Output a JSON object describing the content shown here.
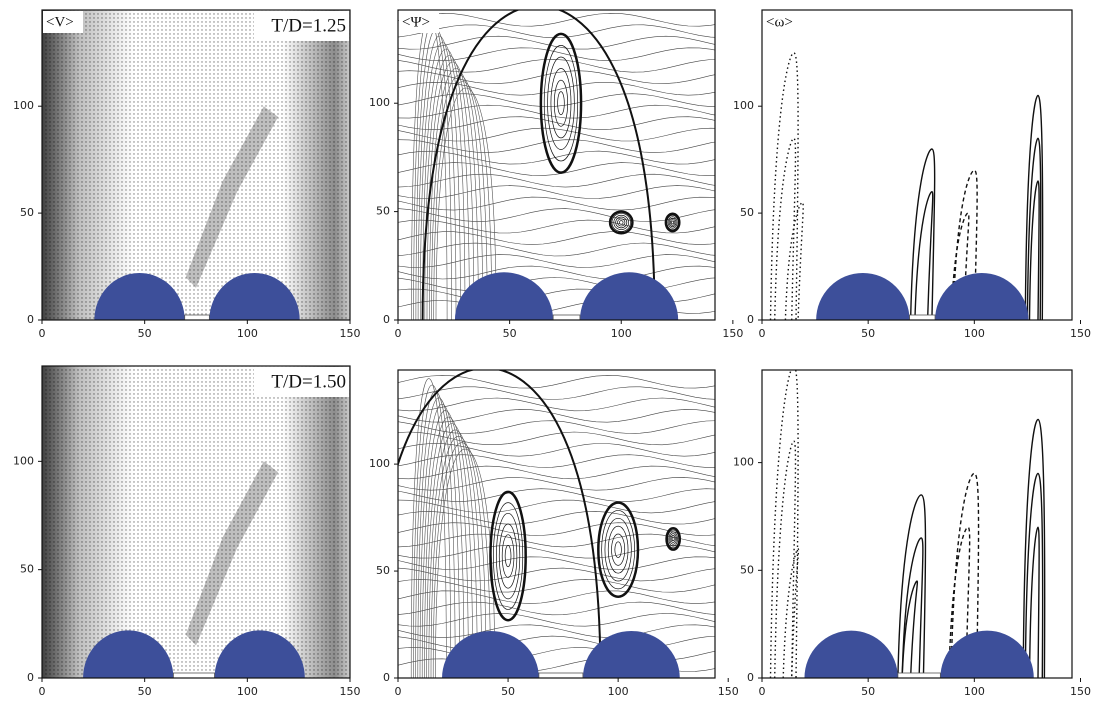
{
  "panels": [
    {
      "label": "<V>",
      "case": "T/D=1.25",
      "xlim": [
        0,
        150
      ],
      "ylim": [
        0,
        145
      ],
      "xticks": [
        0,
        50,
        100,
        150
      ],
      "yticks": [
        0,
        50,
        100
      ]
    },
    {
      "label": "<Ψ>",
      "xlim": [
        0,
        142
      ],
      "ylim": [
        0,
        143
      ],
      "xticks": [
        0,
        50,
        100,
        150
      ],
      "yticks": [
        0,
        50,
        100
      ]
    },
    {
      "label": "<ω>",
      "xlim": [
        0,
        146
      ],
      "ylim": [
        0,
        145
      ],
      "xticks": [
        0,
        50,
        100,
        150
      ],
      "yticks": [
        0,
        50,
        100
      ]
    },
    {
      "case": "T/D=1.50",
      "xlim": [
        0,
        150
      ],
      "ylim": [
        0,
        144
      ],
      "xticks": [
        0,
        50,
        100,
        150
      ],
      "yticks": [
        0,
        50,
        100
      ]
    },
    {
      "xlim": [
        0,
        144
      ],
      "ylim": [
        0,
        144
      ],
      "xticks": [
        0,
        50,
        100,
        150
      ],
      "yticks": [
        0,
        50,
        100
      ]
    },
    {
      "xlim": [
        0,
        146
      ],
      "ylim": [
        0,
        143
      ],
      "xticks": [
        0,
        50,
        100,
        150
      ],
      "yticks": [
        0,
        50,
        100
      ]
    }
  ]
}
